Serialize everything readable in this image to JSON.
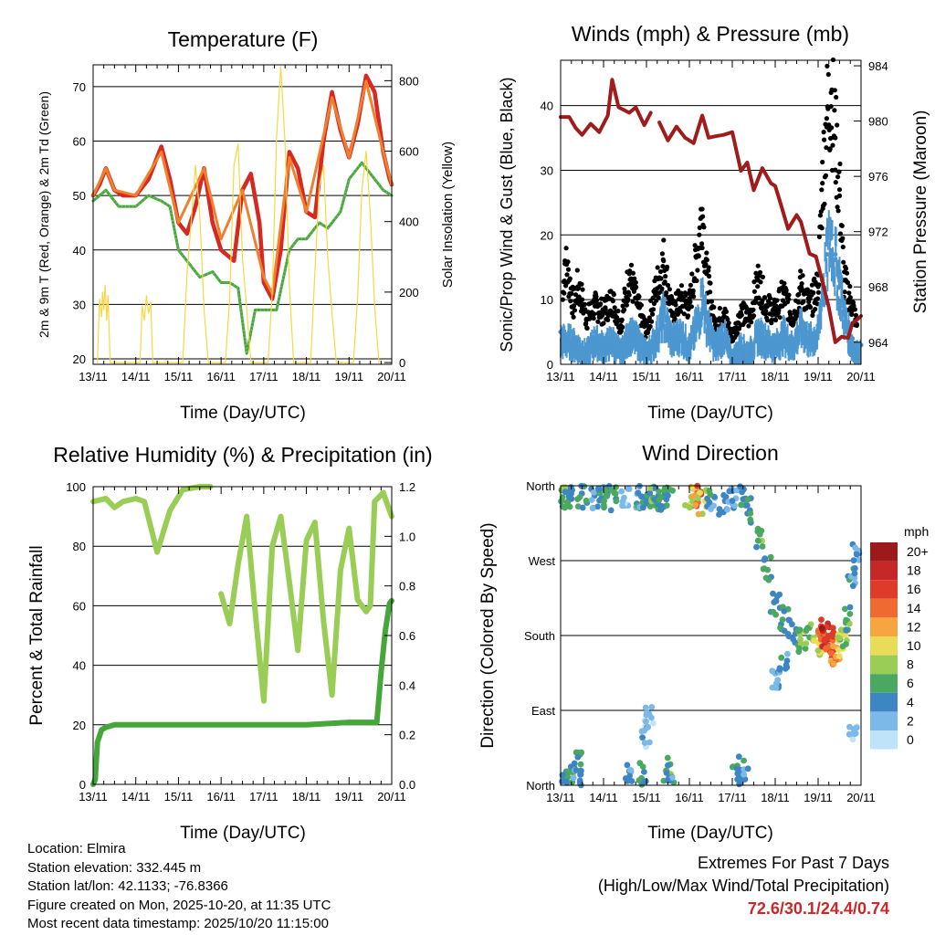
{
  "x_ticks": [
    "13/11",
    "14/11",
    "15/11",
    "16/11",
    "17/11",
    "18/11",
    "19/11",
    "20/11"
  ],
  "chart_data": [
    {
      "type": "line",
      "title": "Temperature (F)",
      "xlabel": "Time (Day/UTC)",
      "ylabel": "2m & 9m T (Red, Orange) & 2m Td (Green)",
      "ylabel_right": "Solar Insolation (Yellow)",
      "ylim": [
        19,
        74
      ],
      "yticks": [
        20,
        30,
        40,
        50,
        60,
        70
      ],
      "ylim_right": [
        -5,
        845
      ],
      "yticks_right": [
        0,
        200,
        400,
        600,
        800
      ],
      "x_days": [
        0,
        7
      ],
      "series": [
        {
          "name": "2m T",
          "color": "#d42a22",
          "x": [
            0,
            0.15,
            0.3,
            0.5,
            0.7,
            1.0,
            1.3,
            1.6,
            1.8,
            2.0,
            2.2,
            2.4,
            2.6,
            2.8,
            3.0,
            3.3,
            3.5,
            3.7,
            3.9,
            4.0,
            4.2,
            4.4,
            4.6,
            4.8,
            5.0,
            5.2,
            5.4,
            5.6,
            5.8,
            6.0,
            6.2,
            6.4,
            6.6,
            6.8,
            6.95,
            7.0
          ],
          "y": [
            50,
            52,
            55,
            51,
            50,
            50,
            53,
            59,
            53,
            45,
            43,
            48,
            55,
            45,
            40,
            38,
            51,
            54,
            45,
            34,
            31,
            40,
            58,
            55,
            47,
            46,
            60,
            69,
            62,
            57,
            63,
            72,
            69,
            58,
            53,
            52
          ]
        },
        {
          "name": "9m T",
          "color": "#f08030",
          "x": [
            0,
            0.3,
            0.5,
            1.0,
            1.6,
            2.0,
            2.6,
            3.0,
            3.5,
            4.0,
            4.2,
            4.6,
            5.0,
            5.6,
            6.0,
            6.4,
            6.8,
            7.0
          ],
          "y": [
            50,
            55,
            51,
            50,
            58,
            45,
            55,
            42,
            51,
            35,
            32,
            57,
            47,
            68,
            57,
            71,
            58,
            52
          ]
        },
        {
          "name": "2m Td",
          "color": "#45a63a",
          "x": [
            0,
            0.3,
            0.6,
            1.0,
            1.3,
            1.6,
            1.8,
            2.0,
            2.2,
            2.5,
            2.8,
            3.0,
            3.2,
            3.4,
            3.6,
            3.8,
            4.0,
            4.3,
            4.6,
            4.8,
            5.0,
            5.3,
            5.5,
            5.8,
            6.0,
            6.3,
            6.6,
            6.8,
            7.0
          ],
          "y": [
            49,
            51,
            48,
            48,
            50,
            49,
            48,
            40,
            38,
            35,
            36,
            34,
            34,
            33,
            21,
            29,
            29,
            29,
            40,
            42,
            42,
            45,
            44,
            47,
            53,
            56,
            53,
            51,
            50
          ]
        },
        {
          "name": "Solar Insolation",
          "color": "#f8d840",
          "axis": "right",
          "x": [
            0.1,
            0.15,
            0.2,
            0.22,
            0.25,
            0.28,
            0.32,
            0.35,
            0.4,
            1.1,
            1.15,
            1.2,
            1.25,
            1.3,
            1.35,
            1.4,
            2.1,
            2.2,
            2.3,
            2.4,
            2.5,
            2.6,
            2.7,
            3.1,
            3.2,
            3.3,
            3.4,
            3.5,
            3.6,
            3.7,
            4.1,
            4.2,
            4.3,
            4.4,
            4.5,
            4.6,
            4.7,
            5.1,
            5.2,
            5.3,
            5.4,
            5.5,
            5.6,
            5.7,
            6.1,
            6.2,
            6.3,
            6.4,
            6.5,
            6.6,
            6.7
          ],
          "y": [
            0,
            180,
            130,
            200,
            150,
            220,
            120,
            190,
            0,
            0,
            160,
            120,
            190,
            140,
            170,
            0,
            0,
            250,
            400,
            560,
            420,
            150,
            0,
            0,
            180,
            560,
            620,
            300,
            150,
            0,
            0,
            200,
            640,
            840,
            620,
            220,
            0,
            0,
            260,
            500,
            560,
            300,
            140,
            0,
            0,
            180,
            490,
            600,
            420,
            160,
            0
          ]
        }
      ]
    },
    {
      "type": "scatter",
      "title": "Winds (mph) & Pressure (mb)",
      "xlabel": "Time (Day/UTC)",
      "ylabel": "Sonic/Prop Wind & Gust (Blue, Black)",
      "ylabel_right": "Station Pressure (Maroon)",
      "ylim": [
        0,
        47
      ],
      "yticks": [
        0,
        10,
        20,
        30,
        40
      ],
      "ylim_right": [
        962.4,
        984.4
      ],
      "yticks_right": [
        964,
        968,
        972,
        976,
        980,
        984
      ],
      "x_days": [
        0,
        7
      ],
      "series": [
        {
          "name": "Gust",
          "color": "#000000",
          "x": [
            0.05,
            0.1,
            0.2,
            0.3,
            0.4,
            0.5,
            0.6,
            0.8,
            1.0,
            1.2,
            1.4,
            1.6,
            1.8,
            2.0,
            2.2,
            2.4,
            2.6,
            2.8,
            3.0,
            3.2,
            3.3,
            3.4,
            3.6,
            3.8,
            4.0,
            4.2,
            4.4,
            4.6,
            4.8,
            5.0,
            5.2,
            5.4,
            5.6,
            5.8,
            6.0,
            6.1,
            6.2,
            6.3,
            6.4,
            6.5,
            6.6,
            6.8,
            6.9
          ],
          "y": [
            10,
            16,
            13,
            9,
            12,
            10,
            7,
            9,
            8,
            10,
            6,
            14,
            9,
            5,
            11,
            16,
            8,
            10,
            9,
            18,
            24,
            14,
            6,
            8,
            4,
            8,
            7,
            13,
            9,
            8,
            11,
            7,
            12,
            9,
            12,
            28,
            38,
            42,
            35,
            27,
            13,
            9,
            6
          ]
        },
        {
          "name": "Wind",
          "color": "#4c97d0",
          "x": [
            0,
            0.2,
            0.4,
            0.6,
            0.8,
            1.0,
            1.2,
            1.4,
            1.6,
            1.8,
            2.0,
            2.2,
            2.4,
            2.6,
            2.8,
            3.0,
            3.2,
            3.3,
            3.4,
            3.6,
            3.8,
            4.0,
            4.2,
            4.4,
            4.6,
            4.8,
            5.0,
            5.2,
            5.4,
            5.6,
            5.8,
            6.0,
            6.1,
            6.2,
            6.3,
            6.4,
            6.5,
            6.6,
            6.8,
            6.9,
            7.0
          ],
          "y": [
            5,
            5,
            4,
            3,
            5,
            4,
            5,
            3,
            6,
            5,
            3,
            5,
            9,
            5,
            6,
            4,
            8,
            12,
            8,
            4,
            6,
            2,
            4,
            3,
            6,
            5,
            4,
            6,
            4,
            7,
            5,
            6,
            13,
            17,
            22,
            17,
            14,
            9,
            4,
            3,
            3
          ]
        },
        {
          "name": "Pressure",
          "color": "#a01c1c",
          "axis": "right",
          "x": [
            0,
            0.2,
            0.35,
            0.5,
            0.7,
            0.9,
            1.1,
            1.2,
            1.35,
            1.6,
            1.75,
            1.95,
            2.1,
            2.2,
            2.3,
            2.5,
            2.7,
            2.9,
            3.1,
            3.3,
            3.45,
            3.6,
            3.8,
            4.0,
            4.2,
            4.35,
            4.5,
            4.7,
            4.9,
            5.0,
            5.1,
            5.3,
            5.5,
            5.6,
            5.8,
            5.95,
            6.1,
            6.25,
            6.4,
            6.55,
            6.7,
            6.8,
            6.9,
            7.0
          ],
          "y": [
            980.3,
            980.3,
            979.5,
            979.0,
            979.8,
            979.2,
            980.4,
            983.0,
            981.0,
            980.6,
            981.0,
            979.7,
            980.6,
            null,
            979.9,
            978.6,
            979.6,
            978.8,
            978.4,
            980.4,
            978.8,
            978.9,
            979.0,
            979.2,
            976.4,
            977.0,
            975.0,
            976.6,
            975.5,
            975.3,
            974.3,
            972.2,
            973.2,
            972.7,
            970.4,
            970.2,
            968.4,
            966.5,
            964.0,
            964.4,
            964.3,
            965.4,
            965.6,
            965.9
          ]
        }
      ]
    },
    {
      "type": "line",
      "title": "Relative Humidity (%) & Precipitation (in)",
      "xlabel": "Time (Day/UTC)",
      "ylabel": "Percent & Total Rainfall",
      "ylim": [
        0,
        100
      ],
      "yticks": [
        0,
        20,
        40,
        60,
        80,
        100
      ],
      "ylim_right": [
        0,
        1.2
      ],
      "yticks_right": [
        "0.0",
        "0.2",
        "0.4",
        "0.6",
        "0.8",
        "1.0",
        "1.2"
      ],
      "x_days": [
        0,
        7
      ],
      "series": [
        {
          "name": "Relative Humidity",
          "color": "#9acd55",
          "x": [
            0,
            0.3,
            0.5,
            0.7,
            1.0,
            1.2,
            1.5,
            1.8,
            2.1,
            2.5,
            2.75,
            2.9,
            3.0,
            3.2,
            3.4,
            3.6,
            3.8,
            4.0,
            4.2,
            4.4,
            4.6,
            4.8,
            5.0,
            5.2,
            5.4,
            5.6,
            5.8,
            6.0,
            6.2,
            6.4,
            6.5,
            6.6,
            6.8,
            7.0
          ],
          "y": [
            95,
            96,
            93,
            95,
            96,
            95,
            78,
            92,
            99,
            100,
            100,
            null,
            64,
            54,
            74,
            90,
            58,
            28,
            80,
            90,
            68,
            45,
            82,
            88,
            55,
            30,
            72,
            86,
            62,
            58,
            60,
            95,
            98,
            90
          ]
        },
        {
          "name": "Total Precipitation",
          "color": "#45a63a",
          "axis": "right",
          "x": [
            0,
            0.05,
            0.1,
            0.2,
            0.3,
            0.5,
            1.0,
            2.0,
            3.0,
            4.0,
            5.0,
            6.0,
            6.5,
            6.65,
            6.75,
            6.85,
            6.95,
            7.0
          ],
          "y": [
            0.0,
            0.02,
            0.17,
            0.22,
            0.23,
            0.24,
            0.24,
            0.24,
            0.24,
            0.24,
            0.24,
            0.25,
            0.25,
            0.25,
            0.45,
            0.62,
            0.73,
            0.74
          ]
        }
      ]
    },
    {
      "type": "scatter",
      "title": "Wind Direction",
      "xlabel": "Time (Day/UTC)",
      "ylabel": "Direction (Colored By Speed)",
      "ylim": [
        0,
        360
      ],
      "yticks": [
        "North",
        "East",
        "South",
        "West",
        "North"
      ],
      "x_days": [
        0,
        7
      ],
      "colorbar": {
        "title": "mph",
        "labels": [
          "20+",
          "18",
          "16",
          "14",
          "12",
          "10",
          "8",
          "6",
          "4",
          "2",
          "0"
        ],
        "colors": [
          "#9c1a1a",
          "#c62828",
          "#de3b2b",
          "#ef6a30",
          "#f7a540",
          "#e8dc58",
          "#9acd55",
          "#4aa860",
          "#3d86c3",
          "#7cb9e8",
          "#bfe4fa"
        ]
      },
      "series": [
        {
          "name": "Direction",
          "x": [
            0.05,
            0.1,
            0.15,
            0.3,
            0.5,
            0.8,
            1.0,
            1.1,
            1.2,
            1.5,
            1.8,
            2.0,
            2.1,
            2.2,
            2.3,
            2.4,
            2.5,
            3.0,
            3.1,
            3.2,
            3.3,
            3.5,
            3.8,
            4.0,
            4.2,
            4.4,
            4.6,
            4.8,
            5.0,
            5.2,
            5.4,
            5.6,
            5.8,
            6.0,
            6.1,
            6.15,
            6.2,
            6.25,
            6.3,
            6.4,
            6.5,
            6.6,
            6.7,
            6.8,
            6.9,
            0.1,
            0.2,
            0.4,
            0.4,
            1.6,
            1.9,
            2.5,
            2.55,
            4.1,
            4.2,
            4.3,
            2.0,
            2.05,
            5.0,
            5.2,
            6.8
          ],
          "y": [
            355,
            350,
            345,
            352,
            348,
            345,
            350,
            343,
            355,
            350,
            345,
            340,
            350,
            352,
            345,
            350,
            348,
            345,
            355,
            350,
            340,
            345,
            340,
            345,
            350,
            330,
            300,
            260,
            220,
            200,
            185,
            175,
            180,
            170,
            175,
            185,
            180,
            175,
            165,
            160,
            170,
            180,
            200,
            250,
            280,
            5,
            10,
            25,
            15,
            10,
            15,
            20,
            5,
            10,
            20,
            5,
            60,
            80,
            130,
            150,
            60
          ],
          "speed": [
            6,
            7,
            5,
            4,
            5,
            3,
            4,
            6,
            5,
            2,
            4,
            5,
            6,
            7,
            4,
            5,
            6,
            8,
            12,
            14,
            10,
            4,
            3,
            3,
            4,
            5,
            6,
            5,
            4,
            5,
            4,
            6,
            7,
            9,
            14,
            17,
            18,
            16,
            15,
            12,
            9,
            8,
            6,
            4,
            3,
            4,
            6,
            5,
            4,
            3,
            5,
            6,
            4,
            5,
            4,
            3,
            2,
            1,
            3,
            4,
            2
          ]
        }
      ]
    }
  ],
  "info": {
    "location": "Location: Elmira",
    "elevation": "Station elevation: 332.445 m",
    "latlon": "Station lat/lon: 42.1133; -76.8366",
    "created": "Figure created on Mon, 2025-10-20, at 11:35 UTC",
    "timestamp": "Most recent data timestamp: 2025/10/20 11:15:00"
  },
  "extremes": {
    "title": "Extremes For Past 7 Days",
    "subtitle": "(High/Low/Max Wind/Total Precipitation)",
    "values": "72.6/30.1/24.4/0.74"
  }
}
